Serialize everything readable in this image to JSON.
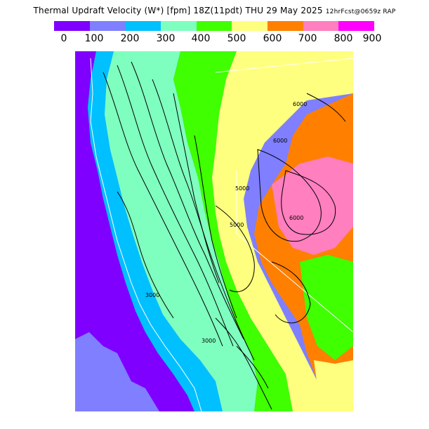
{
  "header": {
    "title_main": "Thermal Updraft Velocity (W*) [fpm] 18Z(11pdt) THU 29 May 2025",
    "title_suffix": "12hrFcst@0659z RAP"
  },
  "legend": {
    "colors": [
      "#7f00ff",
      "#7f7fff",
      "#00c0ff",
      "#7fffbf",
      "#3fff00",
      "#ffff7f",
      "#ff7f00",
      "#ff7fbf",
      "#ff00ff"
    ],
    "labels": [
      "0",
      "100",
      "200",
      "300",
      "400",
      "500",
      "600",
      "700",
      "800",
      "900"
    ]
  },
  "map": {
    "contour_labels": [
      {
        "text": "6000",
        "cls": "z1"
      },
      {
        "text": "6000",
        "cls": "z2"
      },
      {
        "text": "5000",
        "cls": "z3"
      },
      {
        "text": "6000",
        "cls": "z4"
      },
      {
        "text": "5000",
        "cls": "z5"
      },
      {
        "text": "3000",
        "cls": "z6"
      },
      {
        "text": "3000",
        "cls": "z7"
      }
    ]
  }
}
